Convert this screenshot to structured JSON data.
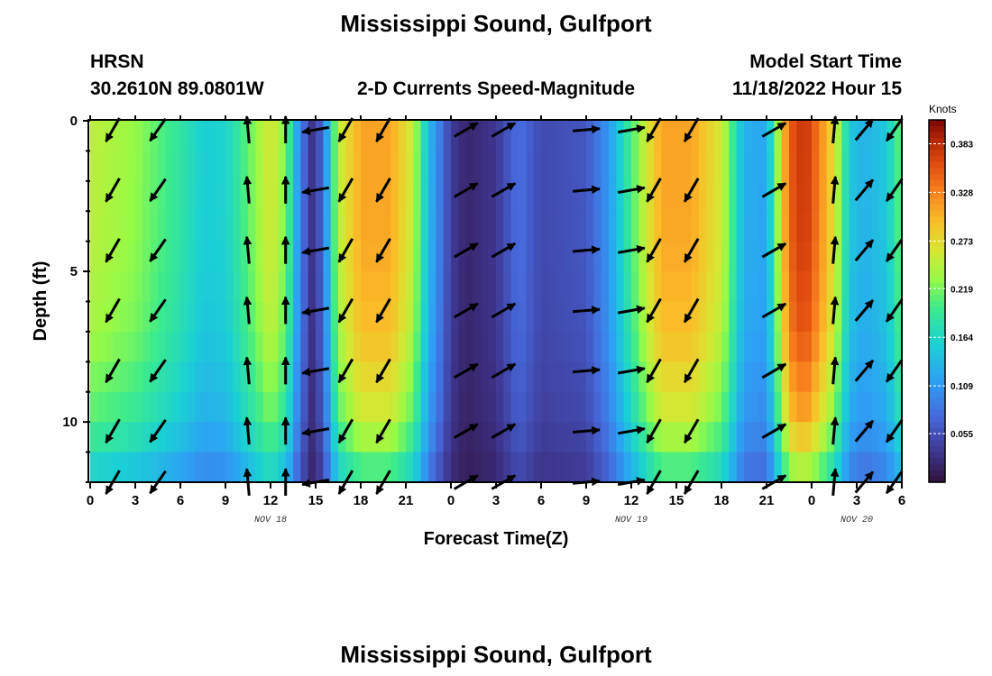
{
  "header": {
    "title": "Mississippi Sound, Gulfport",
    "station": "HRSN",
    "coords": "30.2610N  89.0801W",
    "subtitle": "2-D Currents Speed-Magnitude",
    "model_start_label": "Model Start Time",
    "model_start_value": "11/18/2022 Hour 15"
  },
  "footer_title": "Mississippi Sound, Gulfport",
  "chart_data": {
    "type": "heatmap",
    "title": "2-D Currents Speed-Magnitude",
    "xlabel": "Forecast Time(Z)",
    "ylabel": "Depth (ft)",
    "x_ticks": [
      "0",
      "3",
      "6",
      "9",
      "12",
      "15",
      "18",
      "21",
      "0",
      "3",
      "6",
      "9",
      "12",
      "15",
      "18",
      "21",
      "0",
      "3",
      "6"
    ],
    "x_range_hours": [
      0,
      54
    ],
    "y_ticks": [
      "0",
      "5",
      "10"
    ],
    "y_range_ft": [
      0,
      12
    ],
    "date_labels": [
      {
        "text": "NOV 18",
        "hour": 12
      },
      {
        "text": "NOV 19",
        "hour": 36
      },
      {
        "text": "NOV 20",
        "hour": 51
      }
    ],
    "colorbar": {
      "unit": "Knots",
      "ticks": [
        "0.383",
        "0.328",
        "0.273",
        "0.219",
        "0.164",
        "0.109",
        "0.055"
      ],
      "range": [
        0.0,
        0.41
      ]
    },
    "speed_profile": {
      "hours": [
        0,
        3,
        6,
        7.5,
        9,
        10.5,
        12,
        13,
        14,
        14.8,
        15.5,
        16.5,
        18,
        20,
        21.5,
        22.5,
        24,
        25,
        27,
        28.5,
        30,
        33,
        34.5,
        36,
        37,
        38,
        40,
        42,
        43.5,
        45,
        46.5,
        47.5,
        48,
        49.5,
        50.5,
        51.5,
        53,
        54
      ],
      "surface_knots": [
        0.25,
        0.23,
        0.185,
        0.155,
        0.16,
        0.21,
        0.265,
        0.22,
        0.09,
        0.03,
        0.075,
        0.25,
        0.31,
        0.31,
        0.25,
        0.14,
        0.04,
        0.02,
        0.035,
        0.08,
        0.05,
        0.06,
        0.11,
        0.2,
        0.26,
        0.31,
        0.31,
        0.26,
        0.13,
        0.12,
        0.35,
        0.38,
        0.36,
        0.27,
        0.15,
        0.13,
        0.15,
        0.22
      ],
      "depth_factor": {
        "depth_ft": [
          0,
          4,
          7,
          10,
          12
        ],
        "factor": [
          1.0,
          0.99,
          0.95,
          0.82,
          0.6
        ]
      }
    },
    "vectors": {
      "hours": [
        1.5,
        4.5,
        10.5,
        13,
        15,
        17,
        19.5,
        25,
        27.5,
        33,
        36,
        37.5,
        40,
        45.5,
        49.5,
        51.5,
        53.5
      ],
      "depths_ft": [
        0.3,
        2.3,
        4.3,
        6.3,
        8.3,
        10.3,
        12.0
      ],
      "directions": [
        {
          "hour": 1.5,
          "angle_deg": 210
        },
        {
          "hour": 4.5,
          "angle_deg": 215
        },
        {
          "hour": 10.5,
          "angle_deg": 355
        },
        {
          "hour": 13,
          "angle_deg": 0
        },
        {
          "hour": 15,
          "angle_deg": 260
        },
        {
          "hour": 17,
          "angle_deg": 210
        },
        {
          "hour": 19.5,
          "angle_deg": 210
        },
        {
          "hour": 25,
          "angle_deg": 60
        },
        {
          "hour": 27.5,
          "angle_deg": 60
        },
        {
          "hour": 33,
          "angle_deg": 85
        },
        {
          "hour": 36,
          "angle_deg": 80
        },
        {
          "hour": 37.5,
          "angle_deg": 210
        },
        {
          "hour": 40,
          "angle_deg": 210
        },
        {
          "hour": 45.5,
          "angle_deg": 60
        },
        {
          "hour": 49.5,
          "angle_deg": 5
        },
        {
          "hour": 51.5,
          "angle_deg": 40
        },
        {
          "hour": 53.5,
          "angle_deg": 215
        }
      ]
    },
    "grid": false,
    "legend": "colorbar-right"
  }
}
